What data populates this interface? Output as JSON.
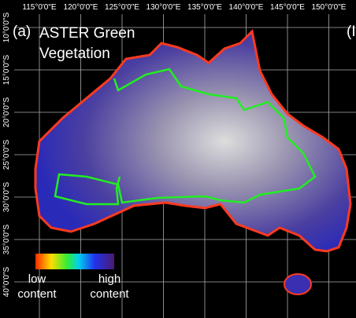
{
  "panel": "(a)",
  "title": "ASTER Green Vegetation",
  "next_panel": "(I",
  "lon_labels": [
    "115°0'0\"E",
    "120°0'0\"E",
    "125°0'0\"E",
    "130°0'0\"E",
    "135°0'0\"E",
    "140°0'0\"E",
    "145°0'0\"E",
    "150°0'0\"E"
  ],
  "lat_labels": [
    "10°0'0\"S",
    "15°0'0\"S",
    "20°0'0\"S",
    "25°0'0\"S",
    "30°0'0\"S",
    "35°0'0\"S",
    "40°0'0\"S"
  ],
  "legend": {
    "low": "low content",
    "high": "high content"
  }
}
